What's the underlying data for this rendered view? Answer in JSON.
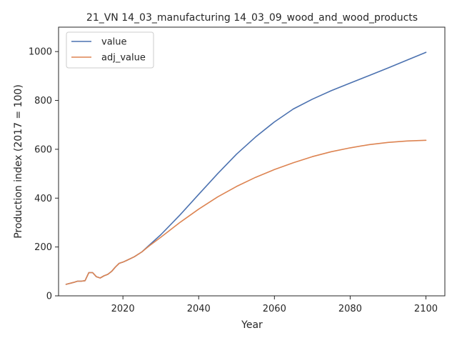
{
  "chart_data": {
    "type": "line",
    "title": "21_VN 14_03_manufacturing 14_03_09_wood_and_wood_products",
    "xlabel": "Year",
    "ylabel": "Production index (2017 = 100)",
    "xlim": [
      2003,
      2105
    ],
    "ylim": [
      0,
      1100
    ],
    "xticks": [
      2020,
      2040,
      2060,
      2080,
      2100
    ],
    "yticks": [
      0,
      200,
      400,
      600,
      800,
      1000
    ],
    "grid": false,
    "legend_position": "top-left",
    "series": [
      {
        "name": "value",
        "color": "#4c72b0",
        "x": [
          2005,
          2007,
          2008,
          2009,
          2010,
          2011,
          2012,
          2013,
          2014,
          2015,
          2016,
          2017,
          2018,
          2019,
          2020,
          2021,
          2023,
          2025,
          2027,
          2030,
          2035,
          2040,
          2045,
          2050,
          2055,
          2060,
          2065,
          2070,
          2075,
          2080,
          2085,
          2090,
          2095,
          2100
        ],
        "y": [
          47,
          55,
          60,
          60,
          62,
          95,
          95,
          78,
          73,
          82,
          88,
          100,
          118,
          133,
          138,
          145,
          160,
          180,
          208,
          250,
          330,
          415,
          500,
          580,
          650,
          712,
          765,
          805,
          840,
          871,
          902,
          933,
          965,
          997
        ]
      },
      {
        "name": "adj_value",
        "color": "#dd8452",
        "x": [
          2005,
          2007,
          2008,
          2009,
          2010,
          2011,
          2012,
          2013,
          2014,
          2015,
          2016,
          2017,
          2018,
          2019,
          2020,
          2021,
          2023,
          2025,
          2027,
          2030,
          2035,
          2040,
          2045,
          2050,
          2055,
          2060,
          2065,
          2070,
          2075,
          2080,
          2085,
          2090,
          2095,
          2100
        ],
        "y": [
          47,
          55,
          60,
          60,
          62,
          95,
          95,
          78,
          73,
          82,
          88,
          100,
          118,
          133,
          138,
          145,
          160,
          180,
          205,
          240,
          300,
          355,
          405,
          448,
          485,
          517,
          545,
          570,
          590,
          606,
          619,
          628,
          634,
          637
        ]
      }
    ]
  }
}
